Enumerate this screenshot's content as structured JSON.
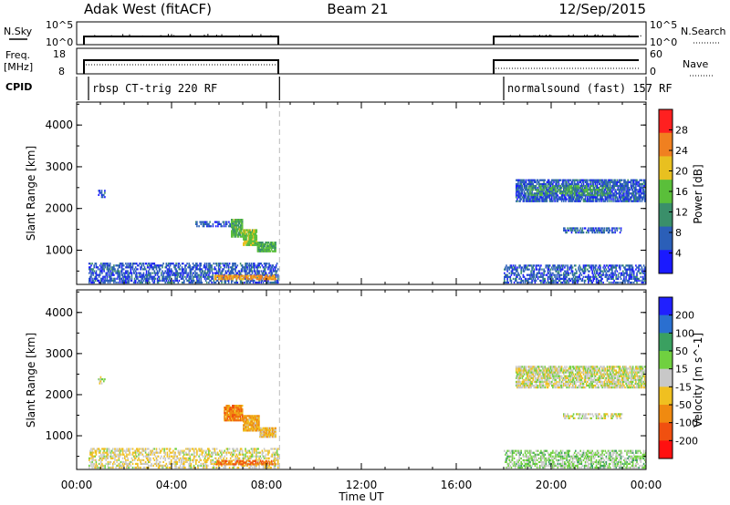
{
  "header": {
    "station": "Adak West (fitACF)",
    "beam": "Beam 21",
    "date": "12/Sep/2015"
  },
  "strips": {
    "nsky_label": "N.Sky",
    "nsearch_label": "N.Search",
    "nsky_ticks": [
      "10^5",
      "10^0"
    ],
    "nsearch_ticks": [
      "10^5",
      "10^0"
    ],
    "freq_label_top": "Freq.",
    "freq_label_unit": "[MHz]",
    "freq_ticks": [
      "18",
      "8"
    ],
    "nave_label": "Nave",
    "nave_ticks": [
      "60",
      "0"
    ],
    "cpid_label": "CPID",
    "cpid_segments": [
      {
        "label": "rbsp CT-trig 220 RF",
        "start_hour": 0.5,
        "end_hour": 8.55
      },
      {
        "label": "normalsound (fast) 157 RF",
        "start_hour": 18.0,
        "end_hour": 24.0
      }
    ]
  },
  "time_axis": {
    "label": "Time UT",
    "ticks": [
      "00:00",
      "04:00",
      "08:00",
      "12:00",
      "16:00",
      "20:00",
      "00:00"
    ],
    "range_hours": [
      0,
      24
    ]
  },
  "colors": {
    "power_scale": [
      "#1a1aff",
      "#2b5fb8",
      "#3a8f6a",
      "#5abf3a",
      "#e8c020",
      "#f08020",
      "#ff2020"
    ],
    "velocity_scale": [
      "#2020ff",
      "#2a6fd0",
      "#3aa060",
      "#70d040",
      "#c8c8c8",
      "#f0c020",
      "#f08a10",
      "#f05010",
      "#ff1010"
    ]
  },
  "chart_data": [
    {
      "type": "heatmap",
      "title": "",
      "xlabel": "",
      "ylabel": "Slant Range [km]",
      "xlim": [
        0,
        24
      ],
      "ylim": [
        180,
        4550
      ],
      "yticks": [
        "1000",
        "2000",
        "3000",
        "4000"
      ],
      "colorbar": {
        "label": "Power [dB]",
        "ticks": [
          "4",
          "8",
          "12",
          "16",
          "20",
          "24",
          "28"
        ],
        "range": [
          0,
          30
        ]
      },
      "regions": [
        {
          "t0": 0.5,
          "t1": 8.5,
          "r0": 200,
          "r1": 700,
          "value": 6,
          "density": 0.55
        },
        {
          "t0": 5.8,
          "t1": 8.4,
          "r0": 280,
          "r1": 400,
          "value": 22,
          "density": 0.7
        },
        {
          "t0": 0.9,
          "t1": 1.2,
          "r0": 2250,
          "r1": 2450,
          "value": 6,
          "density": 0.6
        },
        {
          "t0": 5.0,
          "t1": 6.6,
          "r0": 1550,
          "r1": 1700,
          "value": 6,
          "density": 0.5
        },
        {
          "t0": 6.5,
          "t1": 7.0,
          "r0": 1300,
          "r1": 1750,
          "value": 14,
          "density": 0.9
        },
        {
          "t0": 7.0,
          "t1": 7.6,
          "r0": 1100,
          "r1": 1500,
          "value": 16,
          "density": 0.9
        },
        {
          "t0": 7.6,
          "t1": 8.4,
          "r0": 950,
          "r1": 1200,
          "value": 13,
          "density": 0.9
        },
        {
          "t0": 18.0,
          "t1": 24.0,
          "r0": 200,
          "r1": 650,
          "value": 6,
          "density": 0.5
        },
        {
          "t0": 18.5,
          "t1": 24.0,
          "r0": 2150,
          "r1": 2700,
          "value": 6,
          "density": 0.75
        },
        {
          "t0": 19.0,
          "t1": 22.5,
          "r0": 2300,
          "r1": 2550,
          "value": 13,
          "density": 0.35
        },
        {
          "t0": 20.5,
          "t1": 23.0,
          "r0": 1400,
          "r1": 1550,
          "value": 6,
          "density": 0.6
        }
      ]
    },
    {
      "type": "heatmap",
      "title": "",
      "xlabel": "",
      "ylabel": "Slant Range [km]",
      "xlim": [
        0,
        24
      ],
      "ylim": [
        180,
        4550
      ],
      "yticks": [
        "1000",
        "2000",
        "3000",
        "4000"
      ],
      "colorbar": {
        "label": "Velocity [m s^-1]",
        "ticks": [
          "200",
          "100",
          "50",
          "15",
          "-15",
          "-50",
          "-100",
          "-200"
        ],
        "range": [
          -250,
          250
        ]
      },
      "regions": [
        {
          "t0": 0.5,
          "t1": 8.5,
          "r0": 200,
          "r1": 700,
          "value": -20,
          "density": 0.45
        },
        {
          "t0": 5.8,
          "t1": 8.4,
          "r0": 280,
          "r1": 400,
          "value": -130,
          "density": 0.6
        },
        {
          "t0": 0.9,
          "t1": 1.2,
          "r0": 2250,
          "r1": 2450,
          "value": 0,
          "density": 0.5
        },
        {
          "t0": 6.2,
          "t1": 7.0,
          "r0": 1350,
          "r1": 1750,
          "value": -120,
          "density": 0.9
        },
        {
          "t0": 7.0,
          "t1": 7.7,
          "r0": 1100,
          "r1": 1500,
          "value": -80,
          "density": 0.9
        },
        {
          "t0": 7.7,
          "t1": 8.4,
          "r0": 950,
          "r1": 1200,
          "value": -50,
          "density": 0.9
        },
        {
          "t0": 18.0,
          "t1": 24.0,
          "r0": 200,
          "r1": 650,
          "value": 40,
          "density": 0.5
        },
        {
          "t0": 18.5,
          "t1": 24.0,
          "r0": 2150,
          "r1": 2700,
          "value": 0,
          "density": 0.7
        },
        {
          "t0": 20.5,
          "t1": 23.0,
          "r0": 1400,
          "r1": 1550,
          "value": 0,
          "density": 0.55
        }
      ]
    }
  ]
}
